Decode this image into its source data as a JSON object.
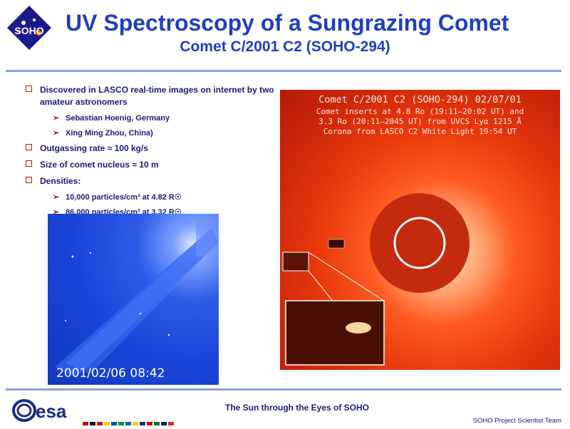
{
  "header": {
    "logo_text": "SOHO",
    "title": "UV Spectroscopy of a Sungrazing Comet",
    "subtitle": "Comet C/2001 C2 (SOHO-294)"
  },
  "bullets": [
    {
      "text": "Discovered in LASCO real-time images on internet by two amateur astronomers",
      "sub": [
        "Sebastian Hoenig, Germany",
        "Xing Ming Zhou, China)"
      ]
    },
    {
      "text": "Outgassing rate ≈ 100 kg/s",
      "sub": []
    },
    {
      "text": "Size of comet nucleus ≈ 10 m",
      "sub": []
    },
    {
      "text": "Densities:",
      "sub": [
        "10,000 particles/cm³ at 4.82 R☉",
        "86,000 particles/cm³ at 3.32 R☉"
      ]
    }
  ],
  "image_left": {
    "timestamp": "2001/02/06 08:42"
  },
  "image_right": {
    "caption_title": "Comet C/2001 C2 (SOHO-294) 02/07/01",
    "caption_line1": "Comet inserts at 4.8 Ro (19:11—20:02 UT) and",
    "caption_line2": "3.3 Ro (20:11—2045 UT) from UVCS Lyα 1215 Å",
    "caption_line3": "Corona from LASCO C2 White Light 19:54 UT"
  },
  "footer": {
    "agency": "esa",
    "center": "The Sun through the Eyes of SOHO",
    "right": "SOHO Project Scientist Team"
  },
  "colors": {
    "title_blue": "#1f3fbf",
    "bullet_red": "#b01818",
    "rule_blue": "#8aa0d8"
  }
}
